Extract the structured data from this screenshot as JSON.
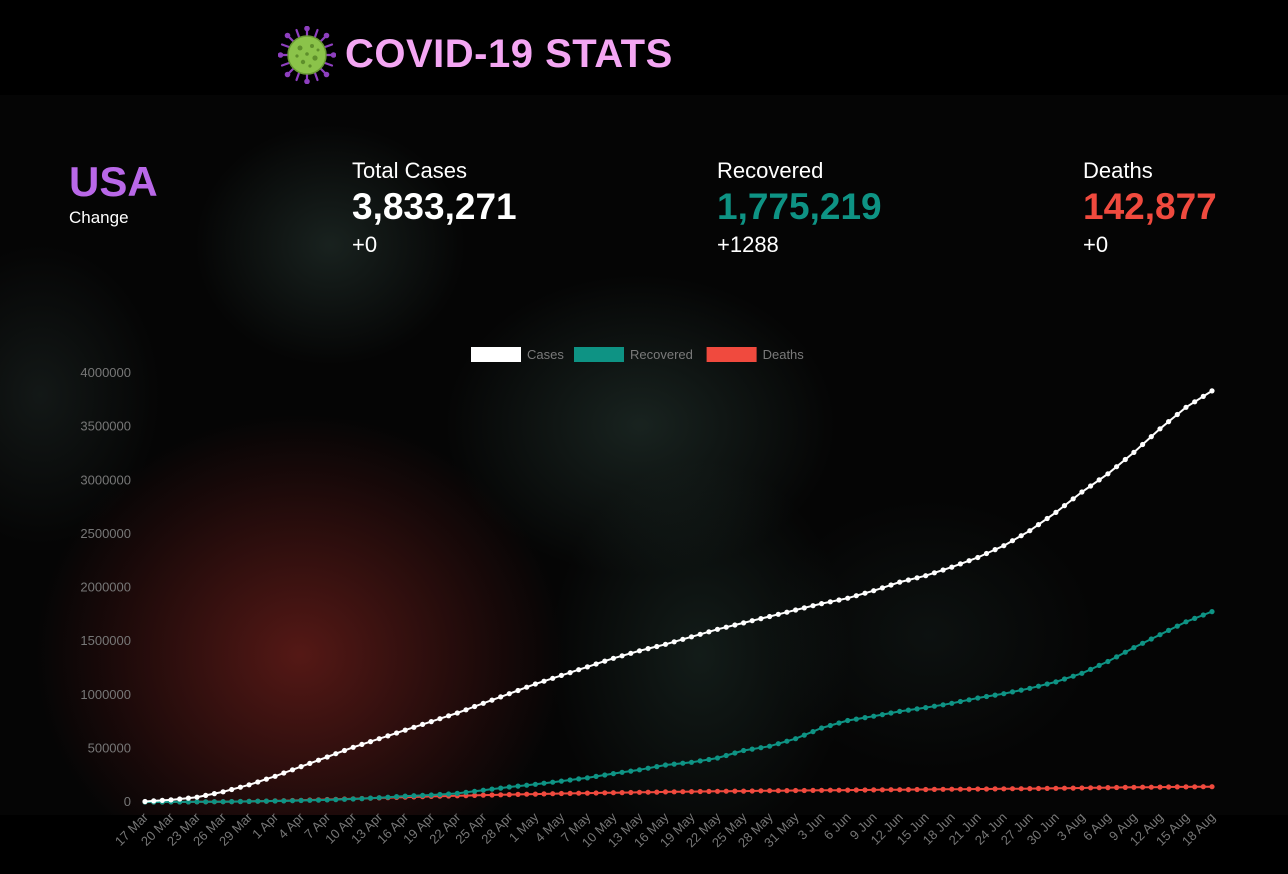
{
  "header": {
    "title": "COVID-19 STATS",
    "icon": "virus-icon"
  },
  "region": {
    "name": "USA",
    "subtitle": "Change"
  },
  "stats": {
    "cases": {
      "label": "Total Cases",
      "value": "3,833,271",
      "change": "+0",
      "color": "#ffffff"
    },
    "recovered": {
      "label": "Recovered",
      "value": "1,775,219",
      "change": "+1288",
      "color": "#0e9384"
    },
    "deaths": {
      "label": "Deaths",
      "value": "142,877",
      "change": "+0",
      "color": "#f04a3e"
    }
  },
  "chart_data": {
    "type": "line",
    "categories": [
      "17 Mar",
      "20 Mar",
      "23 Mar",
      "26 Mar",
      "29 Mar",
      "1 Apr",
      "4 Apr",
      "7 Apr",
      "10 Apr",
      "13 Apr",
      "16 Apr",
      "19 Apr",
      "22 Apr",
      "25 Apr",
      "28 Apr",
      "1 May",
      "4 May",
      "7 May",
      "10 May",
      "13 May",
      "16 May",
      "19 May",
      "22 May",
      "25 May",
      "28 May",
      "31 May",
      "3 Jun",
      "6 Jun",
      "9 Jun",
      "12 Jun",
      "15 Jun",
      "18 Jun",
      "21 Jun",
      "24 Jun",
      "27 Jun",
      "30 Jun",
      "3 Aug",
      "6 Aug",
      "9 Aug",
      "12 Aug",
      "15 Aug",
      "18 Aug"
    ],
    "series": [
      {
        "name": "Cases",
        "color": "#ffffff",
        "values": [
          5000,
          20000,
          45000,
          95000,
          160000,
          240000,
          330000,
          420000,
          510000,
          590000,
          670000,
          750000,
          830000,
          920000,
          1010000,
          1100000,
          1180000,
          1260000,
          1340000,
          1410000,
          1470000,
          1540000,
          1610000,
          1670000,
          1730000,
          1790000,
          1850000,
          1900000,
          1970000,
          2050000,
          2110000,
          2190000,
          2280000,
          2390000,
          2530000,
          2700000,
          2890000,
          3060000,
          3260000,
          3480000,
          3680000,
          3833271
        ]
      },
      {
        "name": "Recovered",
        "color": "#0e9384",
        "values": [
          0,
          500,
          1500,
          3000,
          6000,
          9000,
          14000,
          20000,
          28000,
          40000,
          55000,
          65000,
          80000,
          110000,
          140000,
          165000,
          195000,
          225000,
          265000,
          300000,
          345000,
          370000,
          410000,
          480000,
          520000,
          590000,
          690000,
          760000,
          800000,
          845000,
          880000,
          920000,
          970000,
          1010000,
          1060000,
          1120000,
          1200000,
          1310000,
          1440000,
          1560000,
          1680000,
          1775219
        ]
      },
      {
        "name": "Deaths",
        "color": "#f04a3e",
        "values": [
          100,
          500,
          1500,
          3000,
          6000,
          10000,
          16000,
          23000,
          30000,
          38000,
          45000,
          52000,
          58000,
          64000,
          69000,
          74000,
          79000,
          83000,
          87000,
          90000,
          94000,
          97000,
          100000,
          102000,
          105000,
          107000,
          109000,
          111000,
          113000,
          115000,
          117000,
          119000,
          121000,
          123000,
          125000,
          128000,
          131000,
          134000,
          137000,
          139000,
          141000,
          142877
        ]
      }
    ],
    "y_ticks": [
      "0",
      "500000",
      "1000000",
      "1500000",
      "2000000",
      "2500000",
      "3000000",
      "3500000",
      "4000000"
    ],
    "ylim": [
      0,
      4000000
    ],
    "legend": "top-center",
    "grid": false
  }
}
